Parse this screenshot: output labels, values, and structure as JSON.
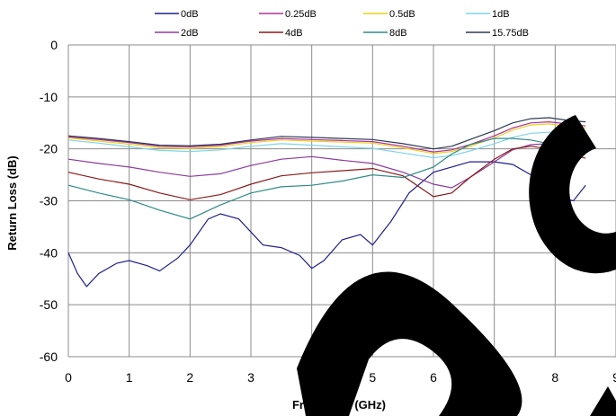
{
  "top_fragment": "",
  "chart_data": {
    "type": "line",
    "title": "",
    "xlabel": "Frequency (GHz)",
    "ylabel": "Return Loss (dB)",
    "xlim": [
      0,
      9
    ],
    "ylim": [
      -60,
      0
    ],
    "x_ticks": [
      0,
      1,
      2,
      3,
      4,
      5,
      6,
      7,
      8,
      9
    ],
    "y_ticks": [
      0,
      -10,
      -20,
      -30,
      -40,
      -50,
      -60
    ],
    "grid": true,
    "legend_position": "top",
    "series": [
      {
        "name": "0dB",
        "color": "#1f1f8f",
        "x": [
          0,
          0.15,
          0.3,
          0.5,
          0.8,
          1.0,
          1.3,
          1.5,
          1.8,
          2.0,
          2.3,
          2.5,
          2.8,
          3.0,
          3.2,
          3.5,
          3.8,
          4.0,
          4.2,
          4.5,
          4.8,
          5.0,
          5.3,
          5.6,
          6.0,
          6.3,
          6.6,
          7.0,
          7.3,
          7.6,
          7.9,
          8.1,
          8.3,
          8.5
        ],
        "y": [
          -40,
          -44,
          -46.5,
          -44,
          -42,
          -41.5,
          -42.5,
          -43.5,
          -41,
          -38.5,
          -33.5,
          -32.5,
          -33.5,
          -36,
          -38.5,
          -39,
          -40.5,
          -43,
          -41.5,
          -37.5,
          -36.5,
          -38.5,
          -34,
          -28.5,
          -24.5,
          -23.5,
          -22.5,
          -22.5,
          -23,
          -25,
          -28,
          -29.5,
          -30,
          -27
        ]
      },
      {
        "name": "0.25dB",
        "color": "#b0309a",
        "x": [
          0,
          0.5,
          1.0,
          1.5,
          2.0,
          2.5,
          3.0,
          3.5,
          4.0,
          4.5,
          5.0,
          5.5,
          6.0,
          6.3,
          6.6,
          7.0,
          7.3,
          7.6,
          7.9,
          8.2,
          8.5
        ],
        "y": [
          -17.7,
          -18.2,
          -18.8,
          -19.5,
          -19.6,
          -19.3,
          -18.5,
          -18.0,
          -18.2,
          -18.4,
          -18.6,
          -19.5,
          -20.6,
          -20.2,
          -19.2,
          -17.5,
          -16.0,
          -15.0,
          -14.8,
          -15.2,
          -15.6
        ]
      },
      {
        "name": "0.5dB",
        "color": "#e8d21a",
        "x": [
          0,
          0.5,
          1.0,
          1.5,
          2.0,
          2.5,
          3.0,
          3.5,
          4.0,
          4.5,
          5.0,
          5.5,
          6.0,
          6.3,
          6.6,
          7.0,
          7.3,
          7.6,
          7.9,
          8.2,
          8.5
        ],
        "y": [
          -17.9,
          -18.5,
          -19.1,
          -19.8,
          -19.9,
          -19.6,
          -18.8,
          -18.3,
          -18.5,
          -18.7,
          -18.9,
          -19.8,
          -20.9,
          -20.5,
          -19.5,
          -17.9,
          -16.4,
          -15.4,
          -15.2,
          -15.6,
          -16.0
        ]
      },
      {
        "name": "1dB",
        "color": "#7fd4e8",
        "x": [
          0,
          0.5,
          1.0,
          1.5,
          2.0,
          2.5,
          3.0,
          3.5,
          4.0,
          4.5,
          5.0,
          5.5,
          6.0,
          6.3,
          6.6,
          7.0,
          7.3,
          7.6,
          7.9,
          8.2,
          8.5
        ],
        "y": [
          -18.3,
          -18.9,
          -19.6,
          -20.3,
          -20.5,
          -20.2,
          -19.5,
          -19.0,
          -19.3,
          -19.6,
          -19.9,
          -20.8,
          -21.7,
          -21.3,
          -20.4,
          -19.0,
          -17.8,
          -17.0,
          -16.8,
          -16.9,
          -17.1
        ]
      },
      {
        "name": "2dB",
        "color": "#8a3b9c",
        "x": [
          0,
          0.5,
          1.0,
          1.5,
          2.0,
          2.5,
          3.0,
          3.5,
          4.0,
          4.5,
          5.0,
          5.5,
          6.0,
          6.3,
          6.6,
          7.0,
          7.3,
          7.6,
          7.9,
          8.2,
          8.5
        ],
        "y": [
          -22,
          -22.8,
          -23.5,
          -24.5,
          -25.3,
          -24.8,
          -23.2,
          -22.0,
          -21.5,
          -22.2,
          -22.8,
          -24.5,
          -26.8,
          -27.5,
          -25.5,
          -22.5,
          -20.2,
          -19.2,
          -19.0,
          -19.6,
          -20.0
        ]
      },
      {
        "name": "4dB",
        "color": "#8b1a1a",
        "x": [
          0,
          0.5,
          1.0,
          1.5,
          2.0,
          2.5,
          3.0,
          3.5,
          4.0,
          4.5,
          5.0,
          5.5,
          6.0,
          6.3,
          6.6,
          7.0,
          7.3,
          7.6,
          7.9,
          8.2,
          8.5
        ],
        "y": [
          -24.5,
          -25.8,
          -26.8,
          -28.5,
          -29.8,
          -28.8,
          -26.8,
          -25.2,
          -24.6,
          -24.2,
          -23.8,
          -25.2,
          -29.2,
          -28.5,
          -25.5,
          -22.0,
          -20.0,
          -19.5,
          -20.0,
          -21.0,
          -21.8
        ]
      },
      {
        "name": "8dB",
        "color": "#2e8b85",
        "x": [
          0,
          0.5,
          1.0,
          1.5,
          2.0,
          2.5,
          3.0,
          3.5,
          4.0,
          4.5,
          5.0,
          5.5,
          6.0,
          6.3,
          6.6,
          7.0,
          7.3,
          7.6,
          7.9,
          8.2,
          8.5
        ],
        "y": [
          -27,
          -28.5,
          -29.8,
          -31.8,
          -33.5,
          -30.8,
          -28.5,
          -27.3,
          -27.0,
          -26.2,
          -25.0,
          -25.5,
          -23.5,
          -21.0,
          -19.2,
          -18.0,
          -18.0,
          -18.3,
          -19.0,
          -20.0,
          -20.5
        ]
      },
      {
        "name": "15.75dB",
        "color": "#2b3a55",
        "x": [
          0,
          0.5,
          1.0,
          1.5,
          2.0,
          2.5,
          3.0,
          3.5,
          4.0,
          4.5,
          5.0,
          5.5,
          6.0,
          6.3,
          6.6,
          7.0,
          7.3,
          7.6,
          7.9,
          8.2,
          8.5
        ],
        "y": [
          -17.5,
          -18.0,
          -18.6,
          -19.3,
          -19.4,
          -19.1,
          -18.3,
          -17.6,
          -17.8,
          -18.0,
          -18.2,
          -19.0,
          -20.0,
          -19.5,
          -18.2,
          -16.5,
          -15.0,
          -14.2,
          -14.0,
          -14.5,
          -14.8
        ]
      }
    ]
  }
}
